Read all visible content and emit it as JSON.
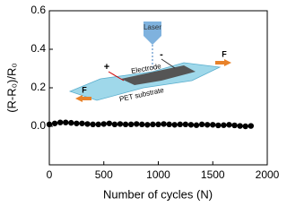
{
  "chart_data": {
    "type": "line",
    "xlabel": "Number of cycles (N)",
    "ylabel": "(R-R₀)/R₀",
    "x": [
      0,
      50,
      100,
      150,
      200,
      250,
      300,
      350,
      400,
      450,
      500,
      550,
      600,
      650,
      700,
      750,
      800,
      850,
      900,
      950,
      1000,
      1050,
      1100,
      1150,
      1200,
      1250,
      1300,
      1350,
      1400,
      1450,
      1500,
      1550,
      1600,
      1650,
      1700,
      1750,
      1800,
      1850
    ],
    "series": [
      {
        "color": "#000000",
        "values": [
          0.01,
          0.015,
          0.02,
          0.02,
          0.018,
          0.015,
          0.015,
          0.012,
          0.01,
          0.01,
          0.012,
          0.015,
          0.01,
          0.012,
          0.01,
          0.01,
          0.012,
          0.01,
          0.008,
          0.01,
          0.01,
          0.012,
          0.01,
          0.008,
          0.01,
          0.01,
          0.008,
          0.006,
          0.01,
          0.008,
          0.008,
          0.005,
          0.006,
          0.008,
          0.005,
          0.002,
          0.0,
          0.002
        ]
      }
    ],
    "xlim": [
      0,
      2000
    ],
    "xticks": [
      0,
      500,
      1000,
      1500,
      2000
    ],
    "ylim": [
      -0.2,
      0.6
    ],
    "yticks": [
      {
        "value": 0,
        "label": "0.0"
      },
      {
        "value": 0.2,
        "label": "0.2"
      },
      {
        "value": 0.4,
        "label": "0.4"
      },
      {
        "value": 0.6,
        "label": "0.6"
      }
    ],
    "annotations": [
      "Laser",
      "Electrode",
      "PET substrate",
      "F",
      "F",
      "+",
      "-"
    ]
  }
}
